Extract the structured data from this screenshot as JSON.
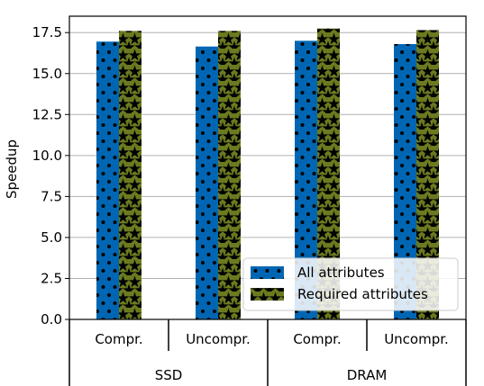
{
  "chart_data": {
    "type": "bar",
    "categories": [
      "Compr.",
      "Uncompr.",
      "Compr.",
      "Uncompr."
    ],
    "groups": [
      {
        "label": "SSD",
        "categories": [
          "Compr.",
          "Uncompr."
        ]
      },
      {
        "label": "DRAM",
        "categories": [
          "Compr.",
          "Uncompr."
        ]
      }
    ],
    "series": [
      {
        "name": "All attributes",
        "values": [
          16.95,
          16.65,
          17.0,
          16.8
        ],
        "color": "#0066b3",
        "pattern": "dots"
      },
      {
        "name": "Required attributes",
        "values": [
          17.6,
          17.6,
          17.75,
          17.65
        ],
        "color": "#6b7a1f",
        "pattern": "stars"
      }
    ],
    "ylabel": "Speedup",
    "xlabel": "",
    "ylim": [
      0,
      18.5
    ],
    "yticks": [
      "0.0",
      "2.5",
      "5.0",
      "7.5",
      "10.0",
      "12.5",
      "15.0",
      "17.5"
    ],
    "grid": true,
    "legend_position": "lower-right"
  }
}
